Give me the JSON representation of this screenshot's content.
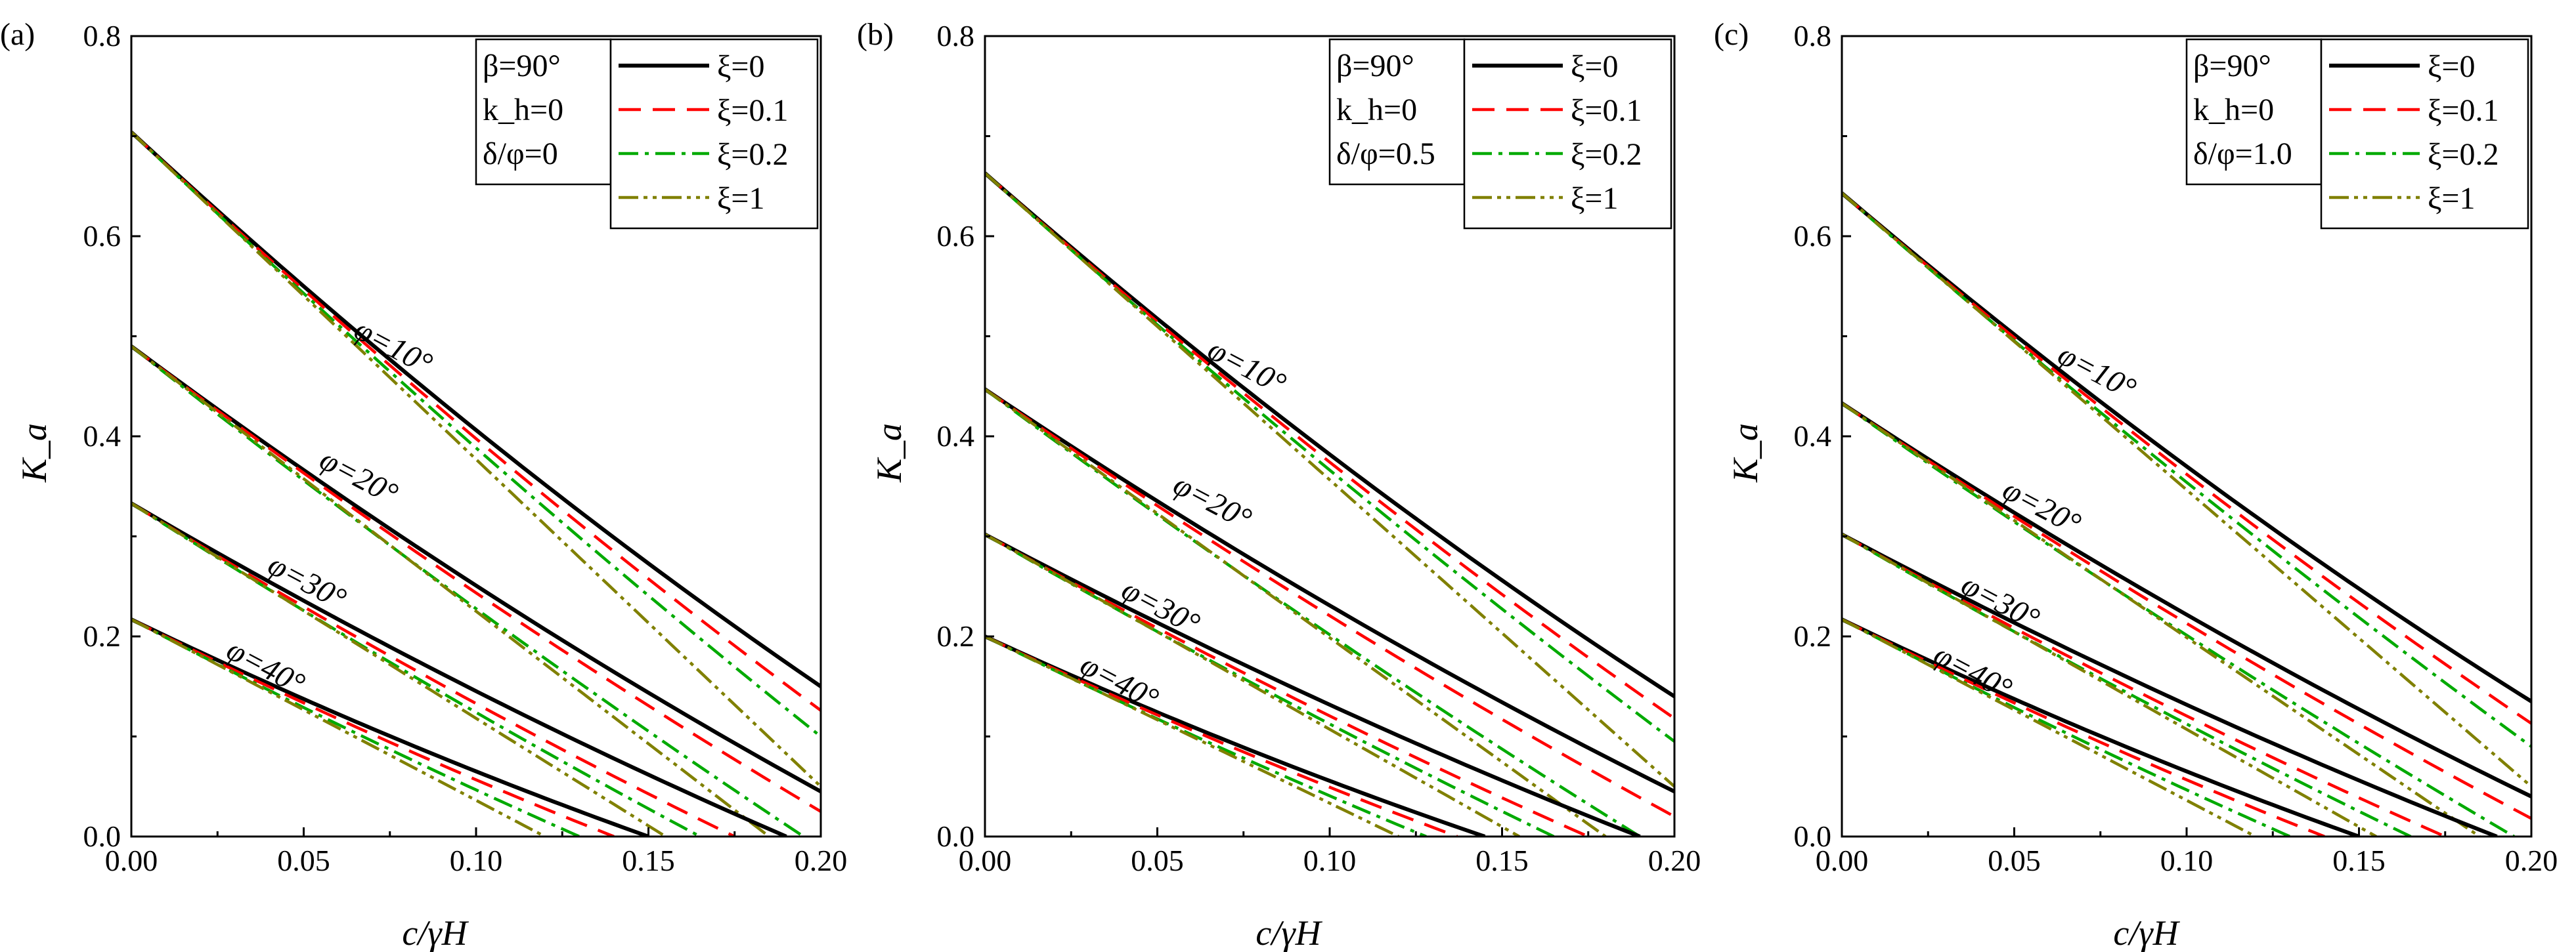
{
  "chart_data": [
    {
      "type": "line",
      "panel_label": "(a)",
      "xlabel": "c/γH",
      "ylabel": "K_a",
      "xlim": [
        0,
        0.2
      ],
      "ylim": [
        0,
        0.8
      ],
      "xticks": [
        "0.00",
        "0.05",
        "0.10",
        "0.15",
        "0.20"
      ],
      "yticks": [
        "0.0",
        "0.2",
        "0.4",
        "0.6",
        "0.8"
      ],
      "param_legend": [
        "β=90°",
        "k_h=0",
        "δ/φ=0"
      ],
      "series_legend": [
        "ξ=0",
        "ξ=0.1",
        "ξ=0.2",
        "ξ=1"
      ],
      "groups": [
        {
          "label": "φ=10°",
          "label_pos": [
            0.064,
            0.5
          ],
          "start": 0.704,
          "end": [
            0.15,
            0.126,
            0.1,
            0.05
          ],
          "curvature": [
            0.15,
            0.12,
            0.09,
            0.0
          ]
        },
        {
          "label": "φ=20°",
          "label_pos": [
            0.054,
            0.37
          ],
          "start": 0.49,
          "end": [
            0.045,
            0.025,
            0.0,
            0.0
          ],
          "curvature": [
            0.15,
            0.12,
            0.09,
            0.0
          ]
        },
        {
          "label": "φ=30°",
          "label_pos": [
            0.039,
            0.265
          ],
          "start": 0.333,
          "end": [
            0.0,
            0.0,
            0.0,
            0.0
          ],
          "curvature": [
            0.15,
            0.12,
            0.09,
            0.0
          ]
        },
        {
          "label": "φ=40°",
          "label_pos": [
            0.027,
            0.18
          ],
          "start": 0.217,
          "end": [
            0.0,
            0.0,
            0.0,
            0.0
          ],
          "curvature": [
            0.15,
            0.12,
            0.09,
            0.0
          ]
        }
      ],
      "zero_crossings": [
        [
          null,
          null,
          null,
          null
        ],
        [
          null,
          null,
          0.195,
          0.185
        ],
        [
          0.19,
          0.175,
          0.165,
          0.155
        ],
        [
          0.15,
          0.14,
          0.13,
          0.12
        ]
      ]
    },
    {
      "type": "line",
      "panel_label": "(b)",
      "xlabel": "c/γH",
      "ylabel": "K_a",
      "xlim": [
        0,
        0.2
      ],
      "ylim": [
        0,
        0.8
      ],
      "xticks": [
        "0.00",
        "0.05",
        "0.10",
        "0.15",
        "0.20"
      ],
      "yticks": [
        "0.0",
        "0.2",
        "0.4",
        "0.6",
        "0.8"
      ],
      "param_legend": [
        "β=90°",
        "k_h=0",
        "δ/φ=0.5"
      ],
      "series_legend": [
        "ξ=0",
        "ξ=0.1",
        "ξ=0.2",
        "ξ=1"
      ],
      "groups": [
        {
          "label": "φ=10°",
          "label_pos": [
            0.064,
            0.48
          ],
          "start": 0.663,
          "end": [
            0.14,
            0.118,
            0.095,
            0.05
          ],
          "curvature": [
            0.15,
            0.12,
            0.09,
            0.0
          ]
        },
        {
          "label": "φ=20°",
          "label_pos": [
            0.054,
            0.345
          ],
          "start": 0.447,
          "end": [
            0.045,
            0.02,
            0.0,
            0.0
          ],
          "curvature": [
            0.15,
            0.12,
            0.09,
            0.0
          ]
        },
        {
          "label": "φ=30°",
          "label_pos": [
            0.039,
            0.24
          ],
          "start": 0.302,
          "end": [
            0.0,
            0.0,
            0.0,
            0.0
          ],
          "curvature": [
            0.15,
            0.12,
            0.09,
            0.0
          ]
        },
        {
          "label": "φ=40°",
          "label_pos": [
            0.027,
            0.165
          ],
          "start": 0.2,
          "end": [
            0.0,
            0.0,
            0.0,
            0.0
          ],
          "curvature": [
            0.15,
            0.12,
            0.09,
            0.0
          ]
        }
      ],
      "zero_crossings": [
        [
          null,
          null,
          null,
          null
        ],
        [
          null,
          null,
          0.19,
          0.18
        ],
        [
          0.19,
          0.175,
          0.165,
          0.155
        ],
        [
          0.145,
          0.137,
          0.128,
          0.12
        ]
      ]
    },
    {
      "type": "line",
      "panel_label": "(c)",
      "xlabel": "c/γH",
      "ylabel": "K_a",
      "xlim": [
        0,
        0.2
      ],
      "ylim": [
        0,
        0.8
      ],
      "xticks": [
        "0.00",
        "0.05",
        "0.10",
        "0.15",
        "0.20"
      ],
      "yticks": [
        "0.0",
        "0.2",
        "0.4",
        "0.6",
        "0.8"
      ],
      "param_legend": [
        "β=90°",
        "k_h=0",
        "δ/φ=1.0"
      ],
      "series_legend": [
        "ξ=0",
        "ξ=0.1",
        "ξ=0.2",
        "ξ=1"
      ],
      "groups": [
        {
          "label": "φ=10°",
          "label_pos": [
            0.062,
            0.475
          ],
          "start": 0.643,
          "end": [
            0.135,
            0.113,
            0.09,
            0.05
          ],
          "curvature": [
            0.15,
            0.12,
            0.09,
            0.0
          ]
        },
        {
          "label": "φ=20°",
          "label_pos": [
            0.046,
            0.34
          ],
          "start": 0.433,
          "end": [
            0.04,
            0.018,
            0.0,
            0.0
          ],
          "curvature": [
            0.15,
            0.12,
            0.09,
            0.0
          ]
        },
        {
          "label": "φ=30°",
          "label_pos": [
            0.034,
            0.245
          ],
          "start": 0.302,
          "end": [
            0.0,
            0.0,
            0.0,
            0.0
          ],
          "curvature": [
            0.15,
            0.12,
            0.09,
            0.0
          ]
        },
        {
          "label": "φ=40°",
          "label_pos": [
            0.026,
            0.175
          ],
          "start": 0.217,
          "end": [
            0.0,
            0.0,
            0.0,
            0.0
          ],
          "curvature": [
            0.15,
            0.12,
            0.09,
            0.0
          ]
        }
      ],
      "zero_crossings": [
        [
          null,
          null,
          null,
          null
        ],
        [
          null,
          null,
          0.195,
          0.185
        ],
        [
          0.19,
          0.175,
          0.165,
          0.155
        ],
        [
          0.15,
          0.14,
          0.13,
          0.12
        ]
      ]
    }
  ],
  "series_styles": [
    {
      "name": "ξ=0",
      "color": "#000000",
      "dash": ""
    },
    {
      "name": "ξ=0.1",
      "color": "#ff0000",
      "dash": "34,18"
    },
    {
      "name": "ξ=0.2",
      "color": "#00aa00",
      "dash": "30,10,6,10"
    },
    {
      "name": "ξ=1",
      "color": "#808000",
      "dash": "30,8,6,8,6,8"
    }
  ]
}
